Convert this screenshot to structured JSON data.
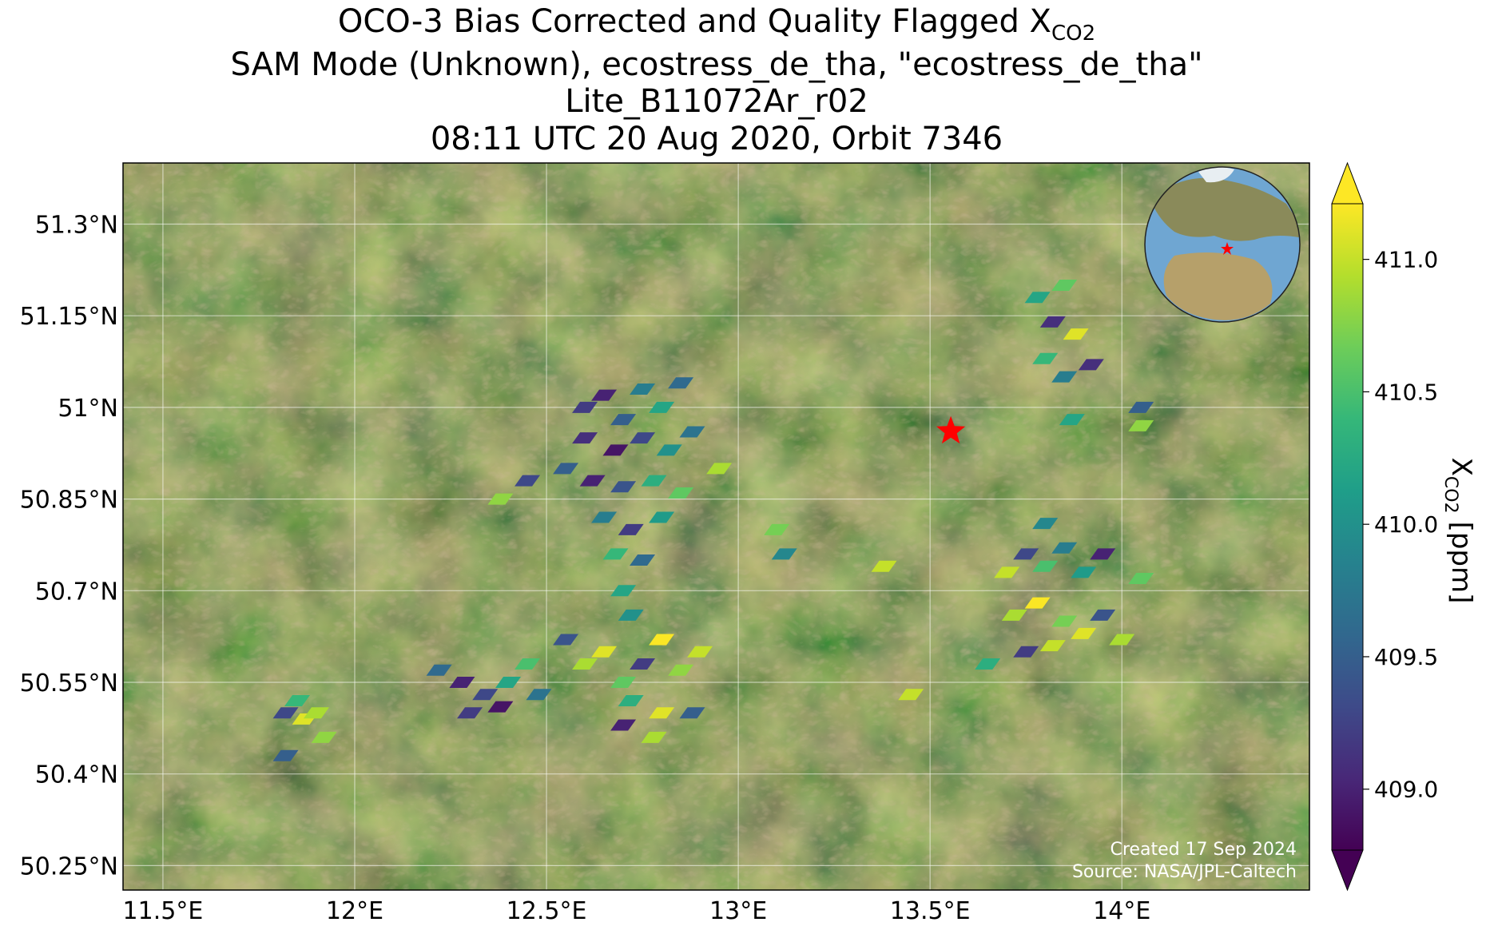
{
  "chart_data": {
    "type": "scatter",
    "title": {
      "main": "OCO-3 Bias Corrected and Quality Flagged X",
      "subscript": "CO2"
    },
    "subtitle": [
      "SAM Mode (Unknown), ecostress_de_tha, \"ecostress_de_tha\"",
      "Lite_B11072Ar_r02",
      "08:11 UTC 20 Aug 2020, Orbit 7346"
    ],
    "colorbar_label": {
      "main": "X",
      "subscript": "CO2",
      "unit": "[ppm]"
    },
    "annotations": [
      "Created 17 Sep 2024",
      "Source: NASA/JPL-Caltech"
    ],
    "colormap": "viridis",
    "grid": true,
    "xlim": [
      11.396,
      14.489
    ],
    "ylim": [
      50.21,
      51.4
    ],
    "clim": [
      408.77,
      411.21
    ],
    "xticks": [
      {
        "value": 11.5,
        "label": "11.5°E"
      },
      {
        "value": 12,
        "label": "12°E"
      },
      {
        "value": 12.5,
        "label": "12.5°E"
      },
      {
        "value": 13,
        "label": "13°E"
      },
      {
        "value": 13.5,
        "label": "13.5°E"
      },
      {
        "value": 14,
        "label": "14°E"
      }
    ],
    "yticks": [
      {
        "value": 50.25,
        "label": "50.25°N"
      },
      {
        "value": 50.4,
        "label": "50.4°N"
      },
      {
        "value": 50.55,
        "label": "50.55°N"
      },
      {
        "value": 50.7,
        "label": "50.7°N"
      },
      {
        "value": 50.85,
        "label": "50.85°N"
      },
      {
        "value": 51,
        "label": "51°N"
      },
      {
        "value": 51.15,
        "label": "51.15°N"
      },
      {
        "value": 51.3,
        "label": "51.3°N"
      }
    ],
    "cticks": [
      {
        "value": 409,
        "label": "409.0"
      },
      {
        "value": 409.5,
        "label": "409.5"
      },
      {
        "value": 410,
        "label": "410.0"
      },
      {
        "value": 410.5,
        "label": "410.5"
      },
      {
        "value": 411,
        "label": "411.0"
      }
    ],
    "site": {
      "x": 13.554,
      "y": 50.961,
      "color": "#ff0000"
    },
    "x": [
      12.6,
      12.65,
      12.7,
      12.75,
      12.8,
      12.85,
      12.6,
      12.68,
      12.75,
      12.82,
      12.88,
      12.55,
      12.62,
      12.7,
      12.78,
      12.85,
      12.65,
      12.72,
      12.8,
      12.68,
      12.75,
      12.7,
      12.72,
      12.45,
      12.38,
      12.95,
      13.1,
      13.12,
      12.55,
      12.6,
      12.65,
      12.7,
      12.75,
      12.8,
      12.85,
      12.9,
      12.72,
      12.8,
      12.88,
      12.78,
      12.7,
      12.22,
      12.28,
      12.34,
      12.4,
      12.45,
      12.3,
      12.38,
      12.48,
      11.82,
      11.87,
      11.9,
      11.85,
      11.92,
      11.82,
      13.7,
      13.75,
      13.8,
      13.85,
      13.9,
      13.95,
      13.72,
      13.78,
      13.85,
      13.9,
      13.95,
      14.0,
      13.75,
      13.82,
      14.05,
      13.65,
      13.8,
      13.78,
      13.85,
      13.82,
      13.88,
      13.8,
      13.85,
      13.92,
      13.87,
      14.05,
      14.05,
      13.38,
      13.45
    ],
    "values": [
      51.0,
      51.02,
      50.98,
      51.03,
      51.0,
      51.04,
      50.95,
      50.93,
      50.95,
      50.93,
      50.96,
      50.9,
      50.88,
      50.87,
      50.88,
      50.86,
      50.82,
      50.8,
      50.82,
      50.76,
      50.75,
      50.7,
      50.66,
      50.88,
      50.85,
      50.9,
      50.8,
      50.76,
      50.62,
      50.58,
      50.6,
      50.55,
      50.58,
      50.62,
      50.57,
      50.6,
      50.52,
      50.5,
      50.5,
      50.46,
      50.48,
      50.57,
      50.55,
      50.53,
      50.55,
      50.58,
      50.5,
      50.51,
      50.53,
      50.5,
      50.49,
      50.5,
      50.52,
      50.46,
      50.43,
      50.73,
      50.76,
      50.74,
      50.77,
      50.73,
      50.76,
      50.66,
      50.68,
      50.65,
      50.63,
      50.66,
      50.62,
      50.6,
      50.61,
      50.72,
      50.58,
      50.81,
      51.18,
      51.2,
      51.14,
      51.12,
      51.08,
      51.05,
      51.07,
      50.98,
      50.97,
      51.0,
      50.74,
      50.53
    ],
    "xco2": [
      409.2,
      409.0,
      409.5,
      409.8,
      410.2,
      409.6,
      409.1,
      408.9,
      409.3,
      410.0,
      409.7,
      409.5,
      409.0,
      409.4,
      410.3,
      410.6,
      409.8,
      409.2,
      410.1,
      410.4,
      409.6,
      410.2,
      410.0,
      409.3,
      410.8,
      410.9,
      410.7,
      409.9,
      409.4,
      410.9,
      411.1,
      410.6,
      409.2,
      411.2,
      410.8,
      411.0,
      410.3,
      411.1,
      409.5,
      410.9,
      409.0,
      409.6,
      409.0,
      409.3,
      410.2,
      410.5,
      409.2,
      408.9,
      409.7,
      409.3,
      411.1,
      410.9,
      410.4,
      410.8,
      409.5,
      411.0,
      409.3,
      410.5,
      409.8,
      410.1,
      409.0,
      410.9,
      411.2,
      410.7,
      411.1,
      409.4,
      410.9,
      409.2,
      411.0,
      410.6,
      410.3,
      409.9,
      410.2,
      410.6,
      409.1,
      411.1,
      410.4,
      409.8,
      409.1,
      410.2,
      410.8,
      409.5,
      411.0,
      411.0
    ]
  }
}
